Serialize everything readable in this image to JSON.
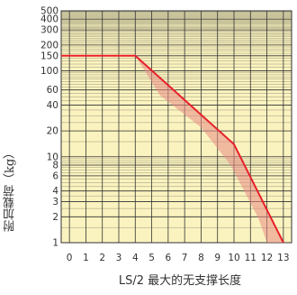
{
  "chart_data": {
    "type": "line",
    "title": "",
    "xlabel": "LS/2 最大的无支撑长度",
    "ylabel": "附加载荷（kg）",
    "x_ticks": [
      0,
      1,
      2,
      3,
      4,
      5,
      6,
      7,
      8,
      9,
      10,
      11,
      12,
      13
    ],
    "x_range": [
      -0.5,
      13.5
    ],
    "y_scale": "log",
    "y_range": [
      1,
      500
    ],
    "y_ticks": [
      1,
      2,
      3,
      4,
      6,
      8,
      10,
      20,
      40,
      60,
      100,
      150,
      200,
      300,
      400,
      500
    ],
    "grid": true,
    "legend": "none",
    "colors": {
      "line": "#e8202a",
      "band": "#e88b85",
      "plot_bg": "#fbf3bf",
      "grid": "#333333"
    },
    "series": [
      {
        "x": [
          -0.5,
          4,
          10,
          13
        ],
        "y": [
          150,
          150,
          14,
          1
        ]
      }
    ],
    "band": {
      "upper": {
        "x": [
          4,
          10,
          13
        ],
        "y": [
          150,
          14,
          1
        ]
      },
      "lower": {
        "x": [
          4,
          5.5,
          8,
          9.8,
          11.5,
          12
        ],
        "y": [
          150,
          52,
          22,
          8,
          1.9,
          1
        ]
      }
    }
  }
}
